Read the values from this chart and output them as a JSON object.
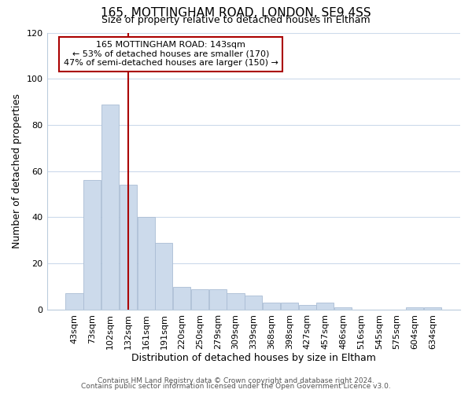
{
  "title": "165, MOTTINGHAM ROAD, LONDON, SE9 4SS",
  "subtitle": "Size of property relative to detached houses in Eltham",
  "xlabel": "Distribution of detached houses by size in Eltham",
  "ylabel": "Number of detached properties",
  "bar_color": "#ccdaeb",
  "bar_edge_color": "#aabdd4",
  "vline_color": "#aa0000",
  "vline_x": 3.0,
  "categories": [
    "43sqm",
    "73sqm",
    "102sqm",
    "132sqm",
    "161sqm",
    "191sqm",
    "220sqm",
    "250sqm",
    "279sqm",
    "309sqm",
    "339sqm",
    "368sqm",
    "398sqm",
    "427sqm",
    "457sqm",
    "486sqm",
    "516sqm",
    "545sqm",
    "575sqm",
    "604sqm",
    "634sqm"
  ],
  "values": [
    7,
    56,
    89,
    54,
    40,
    29,
    10,
    9,
    9,
    7,
    6,
    3,
    3,
    2,
    3,
    1,
    0,
    0,
    0,
    1,
    1
  ],
  "ylim": [
    0,
    120
  ],
  "yticks": [
    0,
    20,
    40,
    60,
    80,
    100,
    120
  ],
  "annotation_title": "165 MOTTINGHAM ROAD: 143sqm",
  "annotation_line1": "← 53% of detached houses are smaller (170)",
  "annotation_line2": "47% of semi-detached houses are larger (150) →",
  "annotation_box_color": "#ffffff",
  "annotation_box_edge": "#aa0000",
  "footer_line1": "Contains HM Land Registry data © Crown copyright and database right 2024.",
  "footer_line2": "Contains public sector information licensed under the Open Government Licence v3.0.",
  "background_color": "#ffffff",
  "grid_color": "#ccdaeb"
}
